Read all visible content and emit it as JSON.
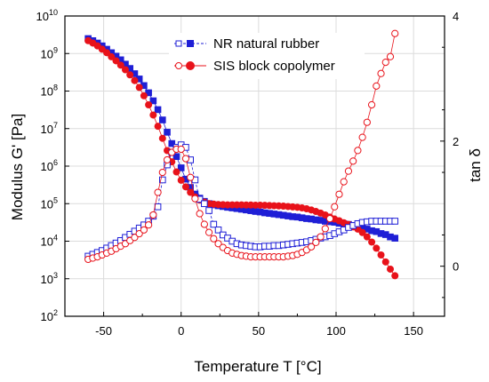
{
  "chart_data": {
    "type": "scatter",
    "xlabel": "Temperature T [°C]",
    "ylabel_left": "Modulus G' [Pa]",
    "ylabel_right": "tan δ",
    "xlim": [
      -75,
      170
    ],
    "ylim_left_log10": [
      2,
      10
    ],
    "ylim_right": [
      -0.8,
      4
    ],
    "x_ticks": [
      -50,
      0,
      50,
      100,
      150
    ],
    "x_tick_labels": [
      "-50",
      "0",
      "50",
      "100",
      "150"
    ],
    "left_tick_exponents": [
      2,
      3,
      4,
      5,
      6,
      7,
      8,
      9,
      10
    ],
    "left_tick_base": "10",
    "right_ticks": [
      0,
      2,
      4
    ],
    "right_tick_labels": [
      "0",
      "2",
      "4"
    ],
    "grid": true,
    "legend_position": "top-center",
    "legend": [
      "NR natural rubber",
      "SIS block copolymer"
    ],
    "colors": {
      "nr": "#1f1fd6",
      "sis": "#e8121a",
      "grid": "#dcdcdc"
    },
    "series": [
      {
        "name": "NR natural rubber",
        "quantity": "G'",
        "axis": "left",
        "marker": "filled-square",
        "x": [
          -60,
          -57,
          -54,
          -51,
          -48,
          -45,
          -42,
          -39,
          -36,
          -33,
          -30,
          -27,
          -24,
          -21,
          -18,
          -15,
          -12,
          -9,
          -6,
          -3,
          0,
          3,
          6,
          9,
          12,
          15,
          18,
          21,
          24,
          27,
          30,
          33,
          36,
          39,
          42,
          45,
          48,
          51,
          54,
          57,
          60,
          63,
          66,
          69,
          72,
          75,
          78,
          81,
          84,
          87,
          90,
          93,
          96,
          99,
          102,
          105,
          108,
          111,
          114,
          117,
          120,
          123,
          126,
          129,
          132,
          135,
          138
        ],
        "y": [
          2500000000.0,
          2200000000.0,
          1900000000.0,
          1600000000.0,
          1300000000.0,
          1050000000.0,
          850000000.0,
          680000000.0,
          520000000.0,
          400000000.0,
          290000000.0,
          210000000.0,
          140000000.0,
          90000000.0,
          55000000.0,
          32000000.0,
          17000000.0,
          8000000.0,
          4000000.0,
          1800000.0,
          900000.0,
          450000.0,
          270000.0,
          180000.0,
          140000.0,
          115000.0,
          100000.0,
          93000.0,
          88000.0,
          84000.0,
          80000.0,
          77000.0,
          74000.0,
          71000.0,
          68000.0,
          65000.0,
          62000.0,
          60000.0,
          57000.0,
          55000.0,
          53000.0,
          51000.0,
          49000.0,
          47000.0,
          45000.0,
          44000.0,
          42000.0,
          40000.0,
          39000.0,
          37000.0,
          36000.0,
          34000.0,
          33000.0,
          32000.0,
          30000.0,
          29000.0,
          28000.0,
          26000.0,
          25000.0,
          23000.0,
          21000.0,
          19000.0,
          18000.0,
          16000.0,
          15000.0,
          13000.0,
          12000.0
        ]
      },
      {
        "name": "SIS block copolymer",
        "quantity": "G'",
        "axis": "left",
        "marker": "filled-circle",
        "x": [
          -60,
          -57,
          -54,
          -51,
          -48,
          -45,
          -42,
          -39,
          -36,
          -33,
          -30,
          -27,
          -24,
          -21,
          -18,
          -15,
          -12,
          -9,
          -6,
          -3,
          0,
          3,
          6,
          9,
          12,
          15,
          18,
          21,
          24,
          27,
          30,
          33,
          36,
          39,
          42,
          45,
          48,
          51,
          54,
          57,
          60,
          63,
          66,
          69,
          72,
          75,
          78,
          81,
          84,
          87,
          90,
          93,
          96,
          99,
          102,
          105,
          108,
          111,
          114,
          117,
          120,
          123,
          126,
          129,
          132,
          135,
          138
        ],
        "y": [
          2200000000.0,
          1900000000.0,
          1600000000.0,
          1300000000.0,
          1050000000.0,
          820000000.0,
          640000000.0,
          490000000.0,
          370000000.0,
          270000000.0,
          190000000.0,
          125000000.0,
          75000000.0,
          43000000.0,
          23000000.0,
          11500000.0,
          5500000.0,
          2600000.0,
          1300000.0,
          700000.0,
          420000.0,
          280000.0,
          200000.0,
          150000.0,
          125000.0,
          110000.0,
          100000.0,
          97000.0,
          95000.0,
          94000.0,
          93000.0,
          93000.0,
          93000.0,
          93000.0,
          92000.0,
          92000.0,
          91000.0,
          91000.0,
          90000.0,
          89000.0,
          88000.0,
          87000.0,
          86000.0,
          84000.0,
          82000.0,
          80000.0,
          77000.0,
          73000.0,
          68000.0,
          62000.0,
          56000.0,
          50000.0,
          44000.0,
          39000.0,
          35000.0,
          31000.0,
          28000.0,
          24000.0,
          21000.0,
          17000.0,
          13000.0,
          9500.0,
          6500.0,
          4300.0,
          2800.0,
          1800.0,
          1200.0
        ]
      },
      {
        "name": "NR natural rubber",
        "quantity": "tan δ",
        "axis": "right",
        "marker": "open-square",
        "x": [
          -60,
          -57,
          -54,
          -51,
          -48,
          -45,
          -42,
          -39,
          -36,
          -33,
          -30,
          -27,
          -24,
          -21,
          -18,
          -15,
          -12,
          -9,
          -6,
          -3,
          0,
          3,
          6,
          9,
          12,
          15,
          18,
          21,
          24,
          27,
          30,
          33,
          36,
          39,
          42,
          45,
          48,
          51,
          54,
          57,
          60,
          63,
          66,
          69,
          72,
          75,
          78,
          81,
          84,
          87,
          90,
          93,
          96,
          99,
          102,
          105,
          108,
          111,
          114,
          117,
          120,
          123,
          126,
          129,
          132,
          135,
          138
        ],
        "y": [
          0.16,
          0.19,
          0.22,
          0.25,
          0.29,
          0.33,
          0.37,
          0.41,
          0.46,
          0.51,
          0.56,
          0.61,
          0.66,
          0.72,
          0.8,
          0.95,
          1.38,
          1.62,
          1.82,
          1.9,
          1.94,
          1.9,
          1.7,
          1.38,
          1.07,
          1.0,
          0.89,
          0.67,
          0.58,
          0.5,
          0.45,
          0.4,
          0.36,
          0.34,
          0.33,
          0.32,
          0.31,
          0.31,
          0.32,
          0.32,
          0.33,
          0.33,
          0.34,
          0.35,
          0.36,
          0.37,
          0.38,
          0.39,
          0.41,
          0.43,
          0.45,
          0.47,
          0.49,
          0.52,
          0.55,
          0.58,
          0.62,
          0.65,
          0.68,
          0.7,
          0.71,
          0.72,
          0.72,
          0.72,
          0.72,
          0.72,
          0.72
        ]
      },
      {
        "name": "SIS block copolymer",
        "quantity": "tan δ",
        "axis": "right",
        "marker": "open-circle",
        "x": [
          -60,
          -57,
          -54,
          -51,
          -48,
          -45,
          -42,
          -39,
          -36,
          -33,
          -30,
          -27,
          -24,
          -21,
          -18,
          -15,
          -12,
          -9,
          -6,
          -3,
          0,
          3,
          6,
          9,
          12,
          15,
          18,
          21,
          24,
          27,
          30,
          33,
          36,
          39,
          42,
          45,
          48,
          51,
          54,
          57,
          60,
          63,
          66,
          69,
          72,
          75,
          78,
          81,
          84,
          87,
          90,
          93,
          96,
          99,
          102,
          105,
          108,
          111,
          114,
          117,
          120,
          123,
          126,
          129,
          132,
          135,
          138
        ],
        "y": [
          0.11,
          0.13,
          0.15,
          0.18,
          0.21,
          0.24,
          0.28,
          0.32,
          0.36,
          0.41,
          0.46,
          0.52,
          0.58,
          0.66,
          0.82,
          1.18,
          1.5,
          1.7,
          1.82,
          1.87,
          1.87,
          1.72,
          1.42,
          1.08,
          0.84,
          0.67,
          0.54,
          0.44,
          0.36,
          0.3,
          0.25,
          0.21,
          0.19,
          0.17,
          0.16,
          0.15,
          0.15,
          0.15,
          0.15,
          0.15,
          0.15,
          0.15,
          0.15,
          0.16,
          0.17,
          0.19,
          0.22,
          0.26,
          0.31,
          0.38,
          0.47,
          0.6,
          0.76,
          0.95,
          1.15,
          1.35,
          1.52,
          1.68,
          1.85,
          2.06,
          2.3,
          2.58,
          2.88,
          3.08,
          3.26,
          3.35,
          3.72
        ]
      }
    ]
  }
}
